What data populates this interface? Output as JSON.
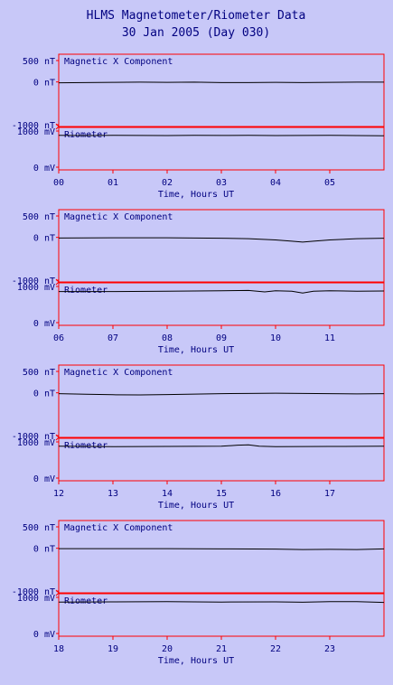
{
  "title": "HLMS Magnetometer/Riometer Data",
  "subtitle": "30 Jan 2005 (Day 030)",
  "colors": {
    "background": "#c8c8f8",
    "frame": "#ff0000",
    "text": "#000080",
    "trace": "#000000"
  },
  "chart_data": [
    {
      "type": "line",
      "xlabel": "Time, Hours UT",
      "x_ticks": [
        "00",
        "01",
        "02",
        "03",
        "04",
        "05"
      ],
      "xlim": [
        0,
        6
      ],
      "mag": {
        "label": "Magnetic X Component",
        "y_ticks": [
          "500 nT",
          "0 nT",
          "-1000 nT"
        ],
        "ylim": [
          -1000,
          500
        ],
        "x": [
          0,
          0.5,
          1,
          1.5,
          2,
          2.5,
          3,
          3.5,
          4,
          4.5,
          5,
          5.5,
          6
        ],
        "y": [
          -20,
          -15,
          -10,
          -5,
          -10,
          -5,
          -15,
          -15,
          -10,
          -15,
          -10,
          -5,
          -5
        ]
      },
      "rio": {
        "label": "Riometer",
        "y_ticks": [
          "1000 mV",
          "0 mV"
        ],
        "ylim": [
          0,
          1100
        ],
        "x": [
          0,
          0.5,
          1,
          1.5,
          2,
          2.5,
          3,
          3.5,
          4,
          4.5,
          5,
          5.5,
          6
        ],
        "y": [
          880,
          875,
          880,
          878,
          876,
          880,
          878,
          880,
          876,
          878,
          880,
          875,
          870
        ]
      }
    },
    {
      "type": "line",
      "xlabel": "Time, Hours UT",
      "x_ticks": [
        "06",
        "07",
        "08",
        "09",
        "10",
        "11"
      ],
      "xlim": [
        6,
        12
      ],
      "mag": {
        "label": "Magnetic X Component",
        "y_ticks": [
          "500 nT",
          "0 nT",
          "-1000 nT"
        ],
        "ylim": [
          -1000,
          500
        ],
        "x": [
          6,
          7,
          8,
          9,
          9.5,
          10,
          10.3,
          10.5,
          10.7,
          11,
          11.5,
          12
        ],
        "y": [
          -15,
          -10,
          -10,
          -20,
          -30,
          -60,
          -90,
          -110,
          -90,
          -60,
          -30,
          -20
        ]
      },
      "rio": {
        "label": "Riometer",
        "y_ticks": [
          "1000 mV",
          "0 mV"
        ],
        "ylim": [
          0,
          1100
        ],
        "x": [
          6,
          7,
          8,
          9,
          9.5,
          9.8,
          10,
          10.3,
          10.5,
          10.7,
          11,
          11.5,
          12
        ],
        "y": [
          860,
          860,
          870,
          880,
          890,
          850,
          880,
          870,
          820,
          870,
          880,
          870,
          875
        ]
      }
    },
    {
      "type": "line",
      "xlabel": "Time, Hours UT",
      "x_ticks": [
        "12",
        "13",
        "14",
        "15",
        "16",
        "17"
      ],
      "xlim": [
        12,
        18
      ],
      "mag": {
        "label": "Magnetic X Component",
        "y_ticks": [
          "500 nT",
          "0 nT",
          "-1000 nT"
        ],
        "ylim": [
          -1000,
          500
        ],
        "x": [
          12,
          12.5,
          13,
          13.5,
          14,
          14.5,
          15,
          15.5,
          16,
          16.5,
          17,
          17.5,
          18
        ],
        "y": [
          -20,
          -35,
          -45,
          -50,
          -40,
          -30,
          -20,
          -15,
          -10,
          -15,
          -20,
          -25,
          -20
        ]
      },
      "rio": {
        "label": "Riometer",
        "y_ticks": [
          "1000 mV",
          "0 mV"
        ],
        "ylim": [
          0,
          1100
        ],
        "x": [
          12,
          13,
          14,
          15,
          15.3,
          15.5,
          15.7,
          16,
          17,
          18
        ],
        "y": [
          880,
          870,
          875,
          880,
          910,
          920,
          880,
          870,
          875,
          880
        ]
      }
    },
    {
      "type": "line",
      "xlabel": "Time, Hours UT",
      "x_ticks": [
        "18",
        "19",
        "20",
        "21",
        "22",
        "23"
      ],
      "xlim": [
        18,
        24
      ],
      "mag": {
        "label": "Magnetic X Component",
        "y_ticks": [
          "500 nT",
          "0 nT",
          "-1000 nT"
        ],
        "ylim": [
          -1000,
          500
        ],
        "x": [
          18,
          19,
          20,
          21,
          22,
          22.5,
          23,
          23.5,
          24
        ],
        "y": [
          -10,
          -10,
          -10,
          -15,
          -20,
          -30,
          -25,
          -30,
          -15
        ]
      },
      "rio": {
        "label": "Riometer",
        "y_ticks": [
          "1000 mV",
          "0 mV"
        ],
        "ylim": [
          0,
          1100
        ],
        "x": [
          18,
          19,
          20,
          21,
          22,
          22.5,
          23,
          23.5,
          24
        ],
        "y": [
          870,
          875,
          880,
          870,
          875,
          865,
          880,
          880,
          860
        ]
      }
    }
  ]
}
